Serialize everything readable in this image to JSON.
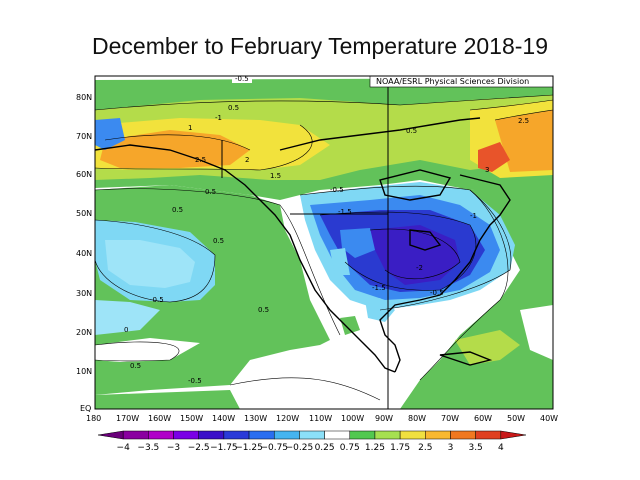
{
  "title": "December to February Temperature 2018-19",
  "credit": "NOAA/ESRL Physical Sciences Division",
  "map": {
    "lat_labels": [
      "80N",
      "70N",
      "60N",
      "50N",
      "40N",
      "30N",
      "20N",
      "10N",
      "EQ"
    ],
    "lon_labels": [
      "180",
      "170W",
      "160W",
      "150W",
      "140W",
      "130W",
      "120W",
      "110W",
      "100W",
      "90W",
      "80W",
      "70W",
      "60W",
      "50W",
      "40W"
    ],
    "contour_labels": [
      "-0.5",
      "0.5",
      "-1",
      "1",
      "1.5",
      "2",
      "2.5",
      "-1.5",
      "-2",
      "-0.5",
      "0.5",
      "2.5",
      "3",
      "-1.5",
      "-1",
      "-0.5",
      "0.5",
      "0.5",
      "-0.5",
      "0",
      "0.5",
      "-0.5",
      "0.5",
      "0.5"
    ]
  },
  "colorbar": {
    "labels": [
      "−4",
      "−3.5",
      "−3",
      "−2.5",
      "−1.75",
      "−1.25",
      "−0.75",
      "−0.25",
      "0.25",
      "0.75",
      "1.25",
      "1.75",
      "2.5",
      "3",
      "3.5",
      "4"
    ],
    "colors": [
      "#6a007a",
      "#8a00a0",
      "#b000c8",
      "#7a00e6",
      "#3a10c8",
      "#2a3ad8",
      "#2a6ef0",
      "#46b4f0",
      "#8ce0f8",
      "#ffffff",
      "#52c850",
      "#a6e050",
      "#f0e040",
      "#f8b830",
      "#f07820",
      "#e04020",
      "#c81818"
    ]
  },
  "fills": {
    "ocean_green": "#62c25a",
    "light_blue": "#7fd8f4",
    "mid_blue": "#3b8af0",
    "deep_blue": "#2a3ad0",
    "indigo": "#3a1ec4",
    "yellow_green": "#b4dc4a",
    "yellow": "#f2e23c",
    "orange": "#f6a62a",
    "red_orange": "#e8542a"
  }
}
